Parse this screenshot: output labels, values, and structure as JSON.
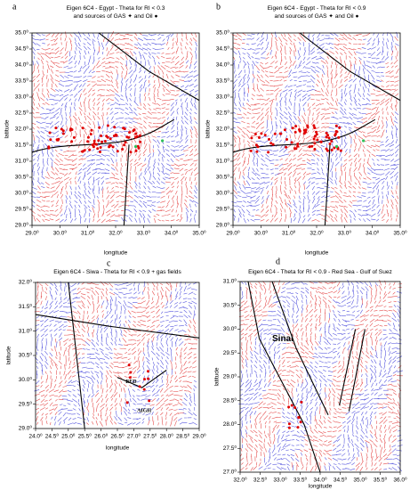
{
  "panels": [
    {
      "letter": "a",
      "title": "Eigen 6C4 - Egypt - Theta for RI < 0.3",
      "subtitle": "and sources of GAS ✦ and Oil ●",
      "xlabel": "longitude",
      "ylabel": "latitude",
      "xlim": [
        29,
        35
      ],
      "ylim": [
        29,
        35
      ],
      "xticks": [
        {
          "value": 29,
          "label": "29.0⁰"
        },
        {
          "value": 30,
          "label": "30.0⁰"
        },
        {
          "value": 31,
          "label": "31.0⁰"
        },
        {
          "value": 32,
          "label": "32.0⁰"
        },
        {
          "value": 33,
          "label": "33.0⁰"
        },
        {
          "value": 34,
          "label": "34.0⁰"
        },
        {
          "value": 35,
          "label": "35.0⁰"
        }
      ],
      "yticks": [
        {
          "value": 29,
          "label": "29.0⁰"
        },
        {
          "value": 29.5,
          "label": "29.5⁰"
        },
        {
          "value": 30,
          "label": "30.0⁰"
        },
        {
          "value": 30.5,
          "label": "30.5⁰"
        },
        {
          "value": 31,
          "label": "31.0⁰"
        },
        {
          "value": 31.5,
          "label": "31.5⁰"
        },
        {
          "value": 32,
          "label": "32.0⁰"
        },
        {
          "value": 32.5,
          "label": "32.5⁰"
        },
        {
          "value": 33,
          "label": "33.0⁰"
        },
        {
          "value": 33.5,
          "label": "33.5⁰"
        },
        {
          "value": 34,
          "label": "34.0⁰"
        },
        {
          "value": 34.5,
          "label": "34.5⁰"
        },
        {
          "value": 35,
          "label": "35.0⁰"
        }
      ]
    },
    {
      "letter": "b",
      "title": "Eigen 6C4 - Egypt - Theta for RI < 0.9",
      "subtitle": "and sources of GAS ✦ and Oil ●",
      "xlabel": "longitude",
      "ylabel": "latitude",
      "xlim": [
        29,
        35
      ],
      "ylim": [
        29,
        35
      ],
      "xticks": [
        {
          "value": 29,
          "label": "29.0⁰"
        },
        {
          "value": 30,
          "label": "30.0⁰"
        },
        {
          "value": 31,
          "label": "31.0⁰"
        },
        {
          "value": 32,
          "label": "32.0⁰"
        },
        {
          "value": 33,
          "label": "33.0⁰"
        },
        {
          "value": 34,
          "label": "34.0⁰"
        },
        {
          "value": 35,
          "label": "35.0⁰"
        }
      ],
      "yticks": [
        {
          "value": 29,
          "label": "29.0⁰"
        },
        {
          "value": 29.5,
          "label": "29.5⁰"
        },
        {
          "value": 30,
          "label": "30.0⁰"
        },
        {
          "value": 30.5,
          "label": "30.5⁰"
        },
        {
          "value": 31,
          "label": "31.0⁰"
        },
        {
          "value": 31.5,
          "label": "31.5⁰"
        },
        {
          "value": 32,
          "label": "32.0⁰"
        },
        {
          "value": 32.5,
          "label": "32.5⁰"
        },
        {
          "value": 33,
          "label": "33.0⁰"
        },
        {
          "value": 33.5,
          "label": "33.5⁰"
        },
        {
          "value": 34,
          "label": "34.0⁰"
        },
        {
          "value": 34.5,
          "label": "34.5⁰"
        },
        {
          "value": 35,
          "label": "35.0⁰"
        }
      ]
    },
    {
      "letter": "c",
      "title": "Eigen 6C4 - Siwa - Theta for RI < 0.9 + gas fields",
      "xlabel": "longitude",
      "ylabel": "latitude",
      "xlim": [
        24,
        29
      ],
      "ylim": [
        29,
        32
      ],
      "xticks": [
        {
          "value": 24,
          "label": "24.0⁰"
        },
        {
          "value": 24.5,
          "label": "24.5⁰"
        },
        {
          "value": 25,
          "label": "25.0⁰"
        },
        {
          "value": 25.5,
          "label": "25.5⁰"
        },
        {
          "value": 26,
          "label": "26.0⁰"
        },
        {
          "value": 26.5,
          "label": "26.5⁰"
        },
        {
          "value": 27,
          "label": "27.0⁰"
        },
        {
          "value": 27.5,
          "label": "27.5⁰"
        },
        {
          "value": 28,
          "label": "28.0⁰"
        },
        {
          "value": 28.5,
          "label": "28.5⁰"
        },
        {
          "value": 29,
          "label": "29.0⁰"
        }
      ],
      "yticks": [
        {
          "value": 29,
          "label": "29.0⁰"
        },
        {
          "value": 29.5,
          "label": "29.5⁰"
        },
        {
          "value": 30,
          "label": "30.0⁰"
        },
        {
          "value": 30.5,
          "label": "30.5⁰"
        },
        {
          "value": 31,
          "label": "31.0⁰"
        },
        {
          "value": 31.5,
          "label": "31.5⁰"
        },
        {
          "value": 32,
          "label": "32.0⁰"
        }
      ],
      "annotations": [
        "BED",
        "AIGH"
      ]
    },
    {
      "letter": "d",
      "title": "Eigen 6C4 - Theta for RI < 0.9 - Red Sea - Gulf of Suez",
      "xlabel": "longitude",
      "ylabel": "latitude",
      "xlim": [
        32,
        36
      ],
      "ylim": [
        27,
        31
      ],
      "xticks": [
        {
          "value": 32,
          "label": "32.0⁰"
        },
        {
          "value": 32.5,
          "label": "32.5⁰"
        },
        {
          "value": 33,
          "label": "33.0⁰"
        },
        {
          "value": 33.5,
          "label": "33.5⁰"
        },
        {
          "value": 34,
          "label": "34.0⁰"
        },
        {
          "value": 34.5,
          "label": "34.5⁰"
        },
        {
          "value": 35,
          "label": "35.0⁰"
        },
        {
          "value": 35.5,
          "label": "35.5⁰"
        },
        {
          "value": 36,
          "label": "36.0⁰"
        }
      ],
      "yticks": [
        {
          "value": 27,
          "label": "27.0⁰"
        },
        {
          "value": 27.5,
          "label": "27.5⁰"
        },
        {
          "value": 28,
          "label": "28.0⁰"
        },
        {
          "value": 28.5,
          "label": "28.5⁰"
        },
        {
          "value": 29,
          "label": "29.0⁰"
        },
        {
          "value": 29.5,
          "label": "29.5⁰"
        },
        {
          "value": 30,
          "label": "30.0⁰"
        },
        {
          "value": 30.5,
          "label": "30.5⁰"
        },
        {
          "value": 31,
          "label": "31.0⁰"
        }
      ],
      "annotations": [
        "Sinai"
      ]
    }
  ]
}
